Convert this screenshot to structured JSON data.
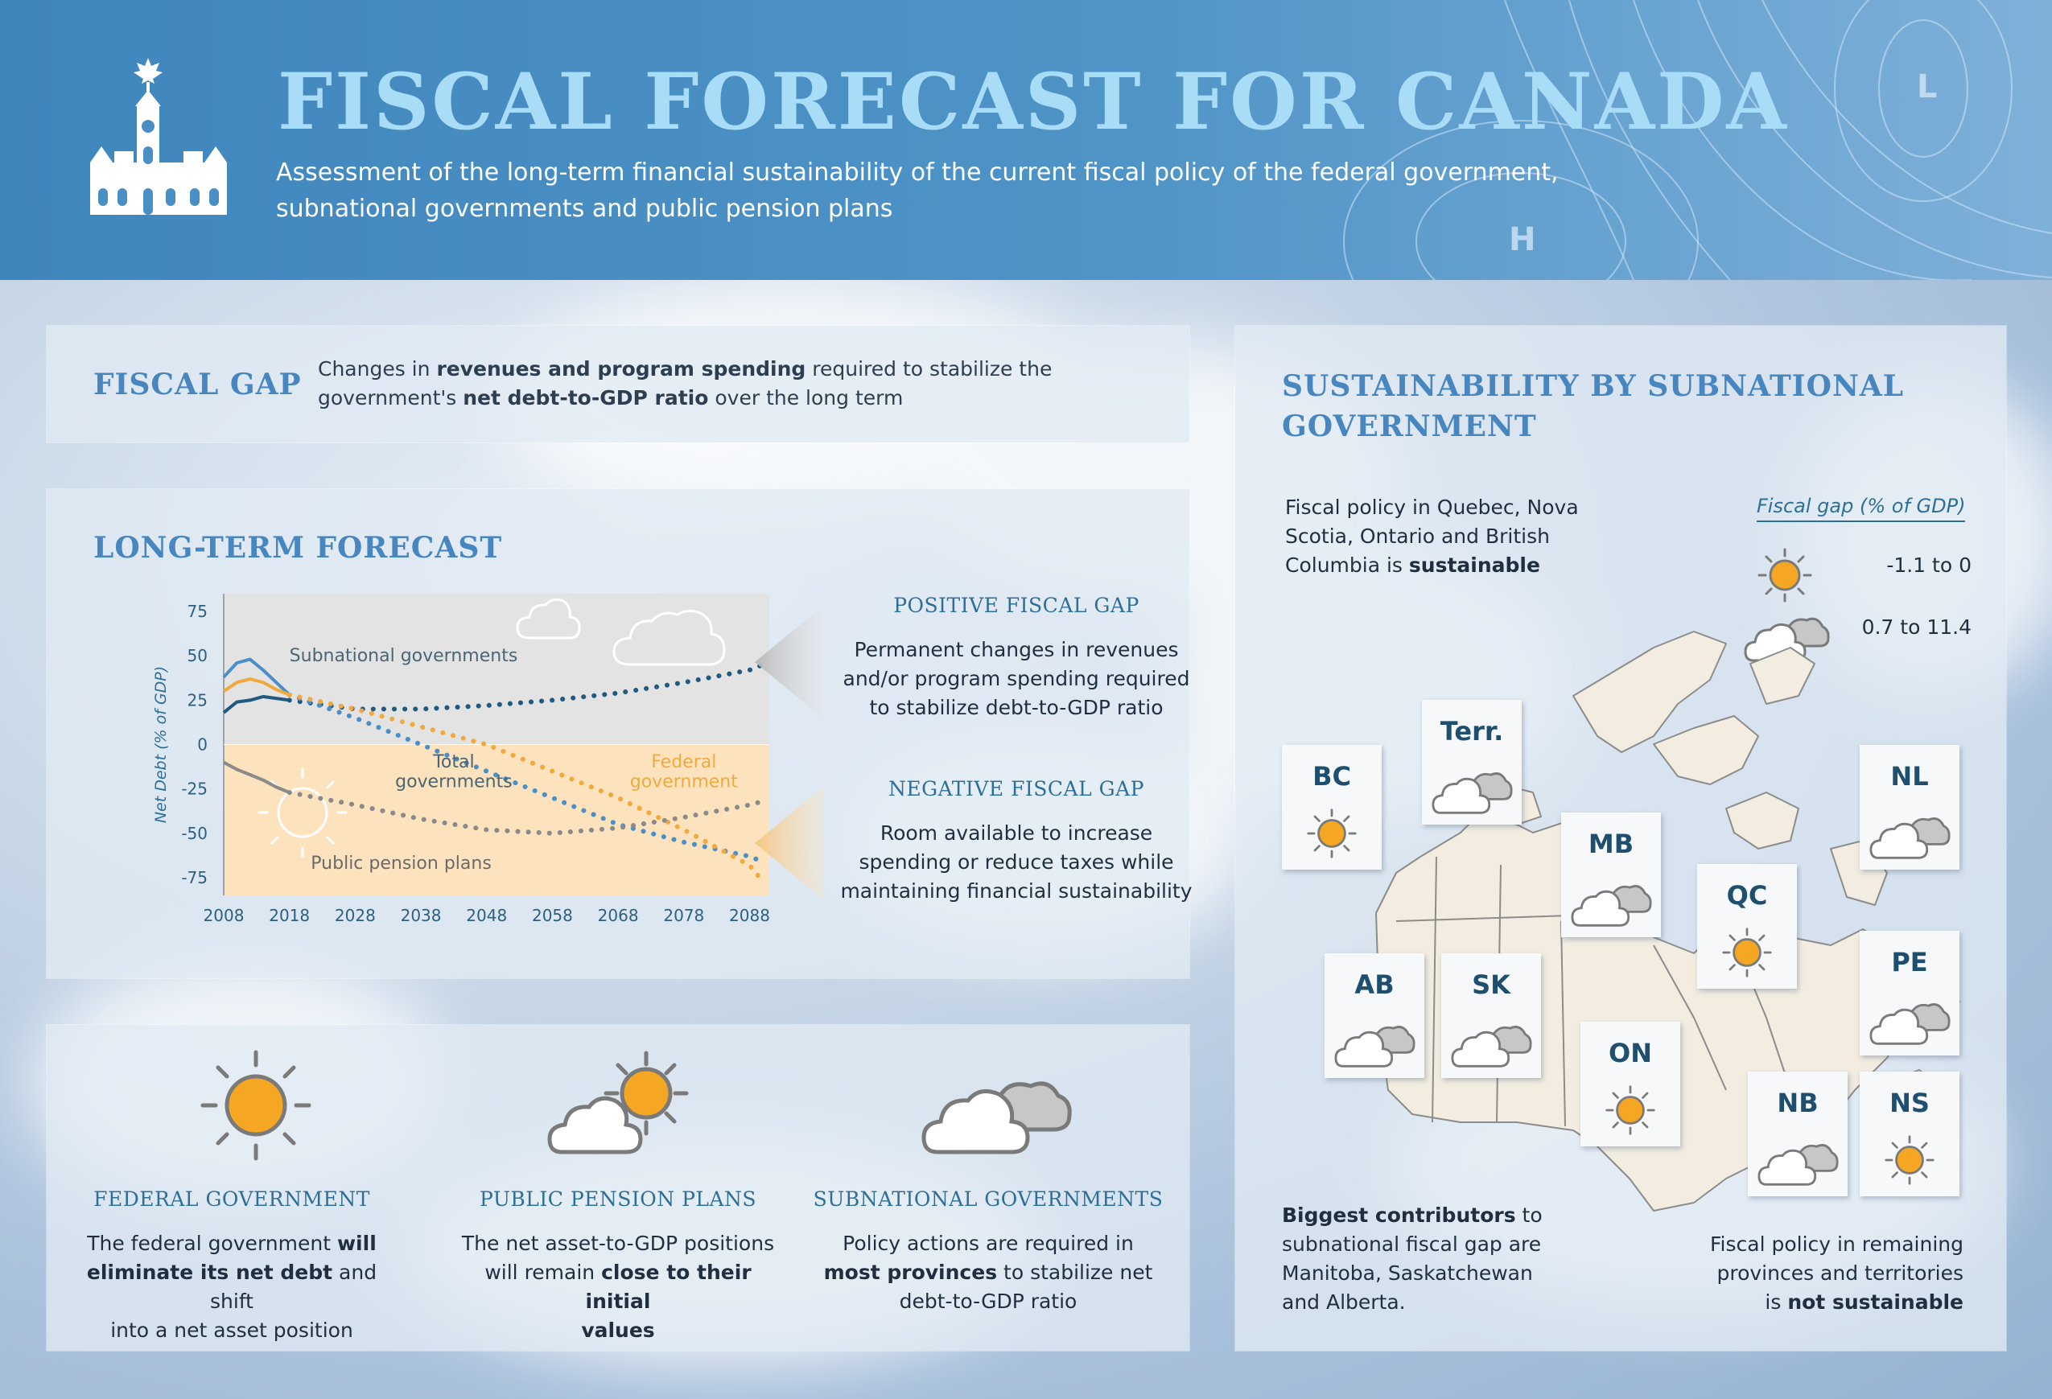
{
  "header": {
    "title": "FISCAL FORECAST FOR CANADA",
    "subtitle_line1": "Assessment of the long-term financial sustainability of the current fiscal policy of the federal government,",
    "subtitle_line2": "subnational governments and public pension plans",
    "weather_map_labels": [
      "L",
      "H"
    ]
  },
  "fiscal_gap": {
    "title": "FISCAL GAP",
    "desc_1": "Changes in ",
    "desc_bold_1": "revenues and program spending",
    "desc_2": " required to stabilize the",
    "desc_3": "government's ",
    "desc_bold_2": "net debt-to-GDP ratio",
    "desc_4": " over the long term"
  },
  "forecast": {
    "title": "LONG-TERM FORECAST",
    "positive": {
      "heading": "POSITIVE FISCAL GAP",
      "line1": "Permanent changes in revenues",
      "line2": "and/or program spending required",
      "line3": "to stabilize debt-to-GDP ratio"
    },
    "negative": {
      "heading": "NEGATIVE FISCAL GAP",
      "line1": "Room available to increase",
      "line2": "spending or reduce taxes while",
      "line3": "maintaining financial sustainability"
    }
  },
  "chart_data": {
    "type": "line",
    "ylabel": "Net Debt (% of GDP)",
    "xlabel": "",
    "xlim": [
      2008,
      2091
    ],
    "ylim": [
      -85,
      85
    ],
    "xticks": [
      2008,
      2018,
      2028,
      2038,
      2048,
      2058,
      2068,
      2078,
      2088
    ],
    "yticks": [
      75,
      50,
      25,
      0,
      -25,
      -50,
      -75
    ],
    "regions": {
      "positive_color": "#e3e3e3",
      "negative_color": "#fde3bd"
    },
    "series": [
      {
        "name": "Subnational governments",
        "color": "#1f5a80",
        "historical": [
          [
            2008,
            18
          ],
          [
            2010,
            24
          ],
          [
            2012,
            25
          ],
          [
            2014,
            27
          ],
          [
            2016,
            26
          ],
          [
            2018,
            25
          ]
        ],
        "projection": [
          [
            2018,
            25
          ],
          [
            2028,
            20
          ],
          [
            2038,
            20
          ],
          [
            2048,
            22
          ],
          [
            2058,
            25
          ],
          [
            2068,
            29
          ],
          [
            2078,
            35
          ],
          [
            2088,
            42
          ],
          [
            2090,
            45
          ]
        ]
      },
      {
        "name": "Total governments",
        "color": "#4a8fc8",
        "historical": [
          [
            2008,
            38
          ],
          [
            2010,
            46
          ],
          [
            2012,
            48
          ],
          [
            2014,
            42
          ],
          [
            2016,
            35
          ],
          [
            2018,
            28
          ]
        ],
        "projection": [
          [
            2018,
            28
          ],
          [
            2028,
            15
          ],
          [
            2038,
            0
          ],
          [
            2048,
            -15
          ],
          [
            2058,
            -30
          ],
          [
            2068,
            -45
          ],
          [
            2078,
            -55
          ],
          [
            2088,
            -63
          ],
          [
            2090,
            -66
          ]
        ]
      },
      {
        "name": "Federal government",
        "color": "#f2a93b",
        "historical": [
          [
            2008,
            30
          ],
          [
            2010,
            35
          ],
          [
            2012,
            37
          ],
          [
            2014,
            35
          ],
          [
            2016,
            31
          ],
          [
            2018,
            28
          ]
        ],
        "projection": [
          [
            2018,
            28
          ],
          [
            2028,
            20
          ],
          [
            2038,
            10
          ],
          [
            2048,
            0
          ],
          [
            2058,
            -15
          ],
          [
            2068,
            -30
          ],
          [
            2078,
            -48
          ],
          [
            2088,
            -68
          ],
          [
            2090,
            -77
          ]
        ]
      },
      {
        "name": "Public pension plans",
        "color": "#8a8a8a",
        "historical": [
          [
            2008,
            -10
          ],
          [
            2010,
            -14
          ],
          [
            2012,
            -17
          ],
          [
            2014,
            -20
          ],
          [
            2016,
            -24
          ],
          [
            2018,
            -27
          ]
        ],
        "projection": [
          [
            2018,
            -27
          ],
          [
            2028,
            -34
          ],
          [
            2038,
            -42
          ],
          [
            2048,
            -48
          ],
          [
            2058,
            -50
          ],
          [
            2068,
            -47
          ],
          [
            2078,
            -41
          ],
          [
            2088,
            -34
          ],
          [
            2090,
            -32
          ]
        ]
      }
    ],
    "labels": [
      {
        "text": "Subnational governments",
        "x": 2018,
        "y": 47,
        "color": "#4a6575"
      },
      {
        "text": "Total",
        "x": 2043,
        "y": -13,
        "color": "#4a6575"
      },
      {
        "text": "governments",
        "x": 2043,
        "y": -24,
        "color": "#4a6575"
      },
      {
        "text": "Federal",
        "x": 2078,
        "y": -13,
        "color": "#f2a93b"
      },
      {
        "text": "government",
        "x": 2078,
        "y": -24,
        "color": "#f2a93b"
      },
      {
        "text": "Public pension plans",
        "x": 2035,
        "y": -70,
        "color": "#6a6a6a"
      }
    ]
  },
  "summary": {
    "cards": [
      {
        "icon": "sun-icon",
        "heading": "FEDERAL GOVERNMENT",
        "l1a": "The federal government ",
        "l1b": "will",
        "l2a": "eliminate its net debt",
        "l2b": " and shift",
        "l3": "into a net asset position"
      },
      {
        "icon": "sun-behind-cloud-icon",
        "heading": "PUBLIC PENSION PLANS",
        "l1a": "The net asset-to-GDP positions",
        "l2a": "will remain ",
        "l2b": "close to their initial",
        "l3": "values"
      },
      {
        "icon": "cloudy-icon",
        "heading": "SUBNATIONAL GOVERNMENTS",
        "l1a": "Policy actions are required in",
        "l2a": "most provinces",
        "l2b": " to stabilize net",
        "l3": "debt-to-GDP ratio"
      }
    ]
  },
  "subnational": {
    "title_line1": "SUSTAINABILITY BY SUBNATIONAL",
    "title_line2": "GOVERNMENT",
    "intro_1": "Fiscal policy in Quebec, Nova",
    "intro_2": "Scotia, Ontario and British",
    "intro_3": "Columbia is ",
    "intro_bold": "sustainable",
    "legend_title": "Fiscal gap (% of GDP)",
    "legend_sun": "-1.1 to 0",
    "legend_cloud": "0.7 to 11.4",
    "regions": [
      {
        "code": "BC",
        "icon": "sun"
      },
      {
        "code": "Terr.",
        "icon": "cloud"
      },
      {
        "code": "MB",
        "icon": "cloud"
      },
      {
        "code": "QC",
        "icon": "sun"
      },
      {
        "code": "NL",
        "icon": "cloud"
      },
      {
        "code": "AB",
        "icon": "cloud"
      },
      {
        "code": "SK",
        "icon": "cloud"
      },
      {
        "code": "ON",
        "icon": "sun"
      },
      {
        "code": "PE",
        "icon": "cloud"
      },
      {
        "code": "NB",
        "icon": "cloud"
      },
      {
        "code": "NS",
        "icon": "sun"
      }
    ],
    "contrib_bold": "Biggest contributors",
    "contrib_1": " to",
    "contrib_2": "subnational fiscal gap are",
    "contrib_3": "Manitoba, Saskatchewan",
    "contrib_4": "and Alberta.",
    "remaining_1": "Fiscal policy in remaining",
    "remaining_2": "provinces and territories",
    "remaining_3": "is ",
    "remaining_bold": "not sustainable"
  },
  "colors": {
    "header_blue": "#4a8fc3",
    "title_light_blue": "#a9dcf7",
    "section_blue": "#4886c0",
    "sun_orange": "#f5a623",
    "cloud_gray": "#9a9a9a"
  }
}
